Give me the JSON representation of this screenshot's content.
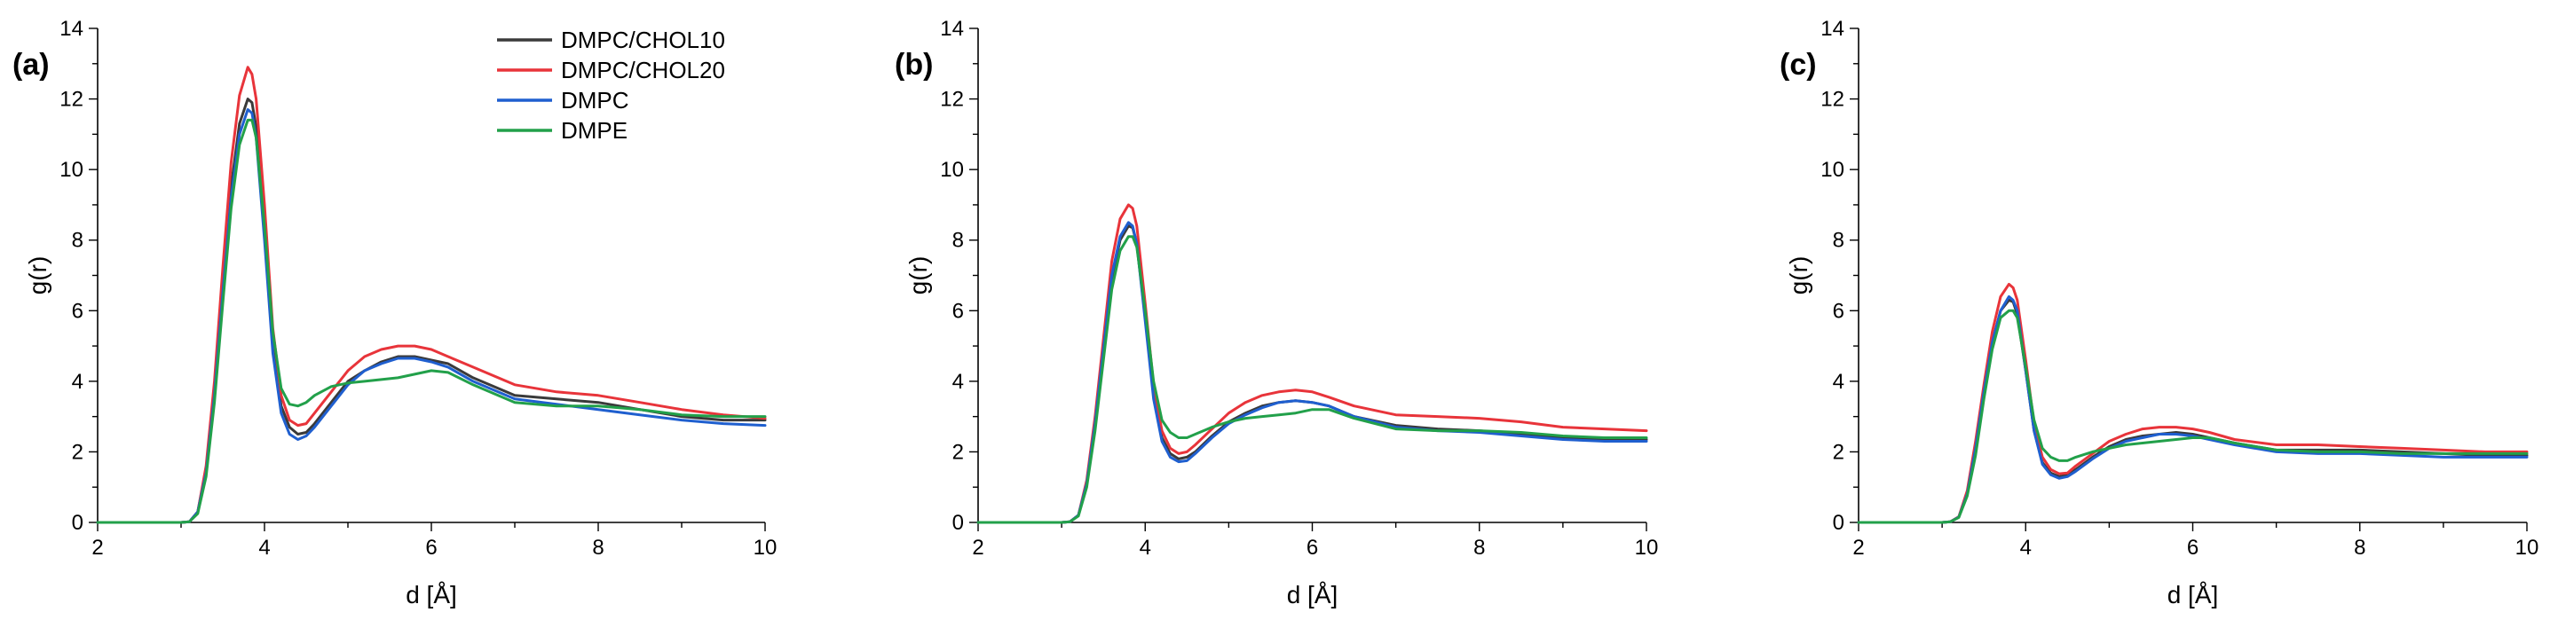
{
  "figure": {
    "panels": [
      "(a)",
      "(b)",
      "(c)"
    ]
  },
  "colors": {
    "DMPC/CHOL10": "#3a3a3a",
    "DMPC/CHOL20": "#e8343a",
    "DMPC": "#1f5fcf",
    "DMPE": "#22a04a"
  },
  "chart_data": [
    {
      "type": "line",
      "panel": "(a)",
      "xlabel": "d [Å]",
      "ylabel": "g(r)",
      "xlim": [
        2,
        10
      ],
      "ylim": [
        0,
        14
      ],
      "xticks": [
        2,
        4,
        6,
        8,
        10
      ],
      "yticks": [
        0,
        2,
        4,
        6,
        8,
        10,
        12,
        14
      ],
      "grid": false,
      "legend": "top-left",
      "x": [
        2.0,
        3.0,
        3.1,
        3.2,
        3.3,
        3.4,
        3.5,
        3.6,
        3.7,
        3.8,
        3.85,
        3.9,
        4.0,
        4.1,
        4.2,
        4.3,
        4.4,
        4.5,
        4.6,
        4.8,
        5.0,
        5.2,
        5.4,
        5.6,
        5.8,
        6.0,
        6.2,
        6.5,
        7.0,
        7.5,
        8.0,
        8.5,
        9.0,
        9.5,
        10.0
      ],
      "series": [
        {
          "name": "DMPC/CHOL10",
          "values": [
            0,
            0,
            0.02,
            0.3,
            1.5,
            3.8,
            6.8,
            9.5,
            11.3,
            12.0,
            11.9,
            11.2,
            8.3,
            5.0,
            3.3,
            2.7,
            2.5,
            2.55,
            2.8,
            3.4,
            4.0,
            4.3,
            4.55,
            4.7,
            4.7,
            4.6,
            4.5,
            4.1,
            3.6,
            3.5,
            3.4,
            3.2,
            3.0,
            2.9,
            2.9
          ]
        },
        {
          "name": "DMPC/CHOL20",
          "values": [
            0,
            0,
            0.02,
            0.3,
            1.6,
            4.0,
            7.2,
            10.2,
            12.1,
            12.9,
            12.7,
            12.0,
            9.0,
            5.5,
            3.6,
            2.9,
            2.75,
            2.8,
            3.1,
            3.7,
            4.3,
            4.7,
            4.9,
            5.0,
            5.0,
            4.9,
            4.7,
            4.4,
            3.9,
            3.7,
            3.6,
            3.4,
            3.2,
            3.05,
            2.95
          ]
        },
        {
          "name": "DMPC",
          "values": [
            0,
            0,
            0.02,
            0.3,
            1.4,
            3.6,
            6.5,
            9.2,
            11.0,
            11.7,
            11.6,
            10.9,
            8.0,
            4.8,
            3.1,
            2.5,
            2.35,
            2.45,
            2.7,
            3.3,
            3.9,
            4.3,
            4.5,
            4.65,
            4.65,
            4.55,
            4.4,
            4.0,
            3.5,
            3.35,
            3.2,
            3.05,
            2.9,
            2.8,
            2.75
          ]
        },
        {
          "name": "DMPE",
          "values": [
            0,
            0,
            0.02,
            0.25,
            1.3,
            3.4,
            6.2,
            8.9,
            10.7,
            11.4,
            11.4,
            10.9,
            8.4,
            5.4,
            3.8,
            3.35,
            3.3,
            3.4,
            3.6,
            3.85,
            3.95,
            4.0,
            4.05,
            4.1,
            4.2,
            4.3,
            4.25,
            3.9,
            3.4,
            3.3,
            3.3,
            3.2,
            3.05,
            3.0,
            3.0
          ]
        }
      ]
    },
    {
      "type": "line",
      "panel": "(b)",
      "xlabel": "d [Å]",
      "ylabel": "g(r)",
      "xlim": [
        2,
        10
      ],
      "ylim": [
        0,
        14
      ],
      "xticks": [
        2,
        4,
        6,
        8,
        10
      ],
      "yticks": [
        0,
        2,
        4,
        6,
        8,
        10,
        12,
        14
      ],
      "grid": false,
      "x": [
        2.0,
        3.0,
        3.1,
        3.2,
        3.3,
        3.4,
        3.5,
        3.6,
        3.7,
        3.8,
        3.85,
        3.9,
        4.0,
        4.1,
        4.2,
        4.3,
        4.4,
        4.5,
        4.6,
        4.8,
        5.0,
        5.2,
        5.4,
        5.6,
        5.8,
        6.0,
        6.2,
        6.5,
        7.0,
        7.5,
        8.0,
        8.5,
        9.0,
        9.5,
        10.0
      ],
      "series": [
        {
          "name": "DMPC/CHOL10",
          "values": [
            0,
            0,
            0.02,
            0.2,
            1.1,
            2.8,
            4.9,
            6.9,
            8.0,
            8.4,
            8.35,
            7.9,
            5.8,
            3.6,
            2.4,
            1.95,
            1.8,
            1.85,
            2.0,
            2.45,
            2.85,
            3.1,
            3.3,
            3.4,
            3.45,
            3.4,
            3.3,
            3.0,
            2.75,
            2.65,
            2.6,
            2.5,
            2.4,
            2.35,
            2.35
          ]
        },
        {
          "name": "DMPC/CHOL20",
          "values": [
            0,
            0,
            0.02,
            0.2,
            1.2,
            3.0,
            5.2,
            7.4,
            8.6,
            9.0,
            8.9,
            8.4,
            6.2,
            3.9,
            2.6,
            2.1,
            1.95,
            2.0,
            2.2,
            2.65,
            3.1,
            3.4,
            3.6,
            3.7,
            3.75,
            3.7,
            3.55,
            3.3,
            3.05,
            3.0,
            2.95,
            2.85,
            2.7,
            2.65,
            2.6
          ]
        },
        {
          "name": "DMPC",
          "values": [
            0,
            0,
            0.02,
            0.2,
            1.1,
            2.8,
            4.9,
            7.0,
            8.1,
            8.5,
            8.4,
            7.9,
            5.7,
            3.5,
            2.3,
            1.85,
            1.72,
            1.75,
            1.95,
            2.4,
            2.8,
            3.05,
            3.25,
            3.4,
            3.45,
            3.4,
            3.3,
            3.0,
            2.7,
            2.6,
            2.55,
            2.45,
            2.35,
            2.3,
            2.3
          ]
        },
        {
          "name": "DMPE",
          "values": [
            0,
            0,
            0.02,
            0.18,
            1.0,
            2.6,
            4.6,
            6.6,
            7.7,
            8.1,
            8.1,
            7.8,
            6.0,
            4.0,
            2.9,
            2.55,
            2.4,
            2.4,
            2.5,
            2.7,
            2.85,
            2.95,
            3.0,
            3.05,
            3.1,
            3.2,
            3.2,
            2.95,
            2.65,
            2.6,
            2.6,
            2.55,
            2.45,
            2.4,
            2.4
          ]
        }
      ]
    },
    {
      "type": "line",
      "panel": "(c)",
      "xlabel": "d [Å]",
      "ylabel": "g(r)",
      "xlim": [
        2,
        10
      ],
      "ylim": [
        0,
        14
      ],
      "xticks": [
        2,
        4,
        6,
        8,
        10
      ],
      "yticks": [
        0,
        2,
        4,
        6,
        8,
        10,
        12,
        14
      ],
      "grid": false,
      "x": [
        2.0,
        3.0,
        3.1,
        3.2,
        3.3,
        3.4,
        3.5,
        3.6,
        3.7,
        3.8,
        3.85,
        3.9,
        4.0,
        4.1,
        4.2,
        4.3,
        4.4,
        4.5,
        4.6,
        4.8,
        5.0,
        5.2,
        5.4,
        5.6,
        5.8,
        6.0,
        6.2,
        6.5,
        7.0,
        7.5,
        8.0,
        8.5,
        9.0,
        9.5,
        10.0
      ],
      "series": [
        {
          "name": "DMPC/CHOL10",
          "values": [
            0,
            0,
            0.02,
            0.15,
            0.8,
            2.1,
            3.7,
            5.1,
            6.0,
            6.3,
            6.25,
            5.9,
            4.3,
            2.6,
            1.7,
            1.4,
            1.3,
            1.35,
            1.5,
            1.85,
            2.15,
            2.35,
            2.45,
            2.5,
            2.55,
            2.5,
            2.4,
            2.25,
            2.05,
            2.05,
            2.05,
            2.0,
            1.95,
            1.9,
            1.9
          ]
        },
        {
          "name": "DMPC/CHOL20",
          "values": [
            0,
            0,
            0.02,
            0.16,
            0.9,
            2.3,
            3.9,
            5.4,
            6.4,
            6.75,
            6.65,
            6.3,
            4.6,
            2.8,
            1.85,
            1.5,
            1.38,
            1.4,
            1.6,
            1.95,
            2.3,
            2.5,
            2.65,
            2.7,
            2.7,
            2.65,
            2.55,
            2.35,
            2.2,
            2.2,
            2.15,
            2.1,
            2.05,
            2.0,
            2.0
          ]
        },
        {
          "name": "DMPC",
          "values": [
            0,
            0,
            0.02,
            0.15,
            0.8,
            2.1,
            3.7,
            5.1,
            6.0,
            6.4,
            6.3,
            6.0,
            4.3,
            2.6,
            1.65,
            1.35,
            1.25,
            1.3,
            1.45,
            1.8,
            2.1,
            2.3,
            2.4,
            2.5,
            2.5,
            2.45,
            2.35,
            2.2,
            2.0,
            1.95,
            1.95,
            1.9,
            1.85,
            1.85,
            1.85
          ]
        },
        {
          "name": "DMPE",
          "values": [
            0,
            0,
            0.02,
            0.14,
            0.75,
            1.9,
            3.5,
            4.9,
            5.8,
            6.0,
            6.0,
            5.8,
            4.4,
            2.9,
            2.1,
            1.85,
            1.75,
            1.75,
            1.85,
            2.0,
            2.1,
            2.2,
            2.25,
            2.3,
            2.35,
            2.4,
            2.4,
            2.25,
            2.05,
            2.0,
            2.0,
            1.95,
            1.95,
            1.95,
            1.95
          ]
        }
      ]
    }
  ]
}
